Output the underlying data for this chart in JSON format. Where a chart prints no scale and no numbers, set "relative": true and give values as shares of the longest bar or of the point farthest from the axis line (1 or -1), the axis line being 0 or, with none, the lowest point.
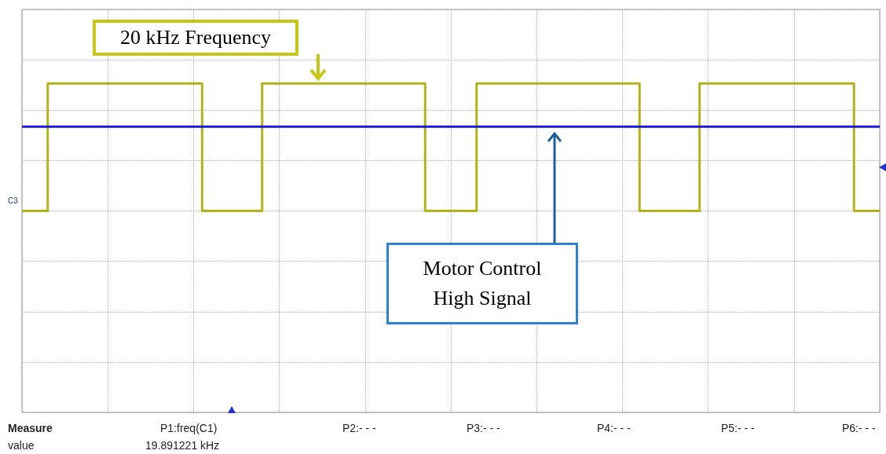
{
  "chart_data": {
    "type": "step",
    "relative": true,
    "grid": true,
    "categories": [
      null,
      null,
      null,
      null,
      null,
      null,
      null,
      null,
      null,
      null,
      null,
      null,
      null,
      null,
      null,
      null,
      null,
      null,
      null,
      null,
      null,
      null,
      null,
      null,
      null,
      null,
      null,
      null,
      null,
      null,
      null,
      null,
      null,
      null,
      null,
      null,
      null,
      null,
      null,
      null,
      null,
      null,
      null,
      null,
      null,
      null,
      null,
      null,
      null,
      null,
      null,
      null,
      null,
      null,
      null,
      null,
      null,
      null,
      null,
      null,
      null,
      null,
      null,
      null,
      null,
      null,
      null,
      null,
      null,
      null,
      null,
      null,
      null,
      null,
      null,
      null,
      null,
      null,
      null,
      null,
      null,
      null,
      null,
      null,
      null,
      null,
      null,
      null,
      null,
      null,
      null,
      null,
      null,
      null,
      null,
      null,
      null,
      null,
      null,
      null,
      null
    ],
    "series": [
      {
        "color": "#b3b319",
        "values": [
          0,
          0,
          0,
          1,
          1,
          1,
          1,
          1,
          1,
          1,
          1,
          1,
          1,
          1,
          1,
          1,
          1,
          1,
          1,
          1,
          1,
          0,
          0,
          0,
          0,
          0,
          0,
          0,
          1,
          1,
          1,
          1,
          1,
          1,
          1,
          1,
          1,
          1,
          1,
          1,
          1,
          1,
          1,
          1,
          1,
          1,
          1,
          0,
          0,
          0,
          0,
          0,
          0,
          1,
          1,
          1,
          1,
          1,
          1,
          1,
          1,
          1,
          1,
          1,
          1,
          1,
          1,
          1,
          1,
          1,
          1,
          1,
          0,
          0,
          0,
          0,
          0,
          0,
          0,
          1,
          1,
          1,
          1,
          1,
          1,
          1,
          1,
          1,
          1,
          1,
          1,
          1,
          1,
          1,
          1,
          1,
          1,
          0,
          0,
          0,
          0
        ]
      },
      {
        "color": "#1a1ad6",
        "values": [
          0.66,
          0.66,
          0.66,
          0.66,
          0.66,
          0.66,
          0.66,
          0.66,
          0.66,
          0.66,
          0.66,
          0.66,
          0.66,
          0.66,
          0.66,
          0.66,
          0.66,
          0.66,
          0.66,
          0.66,
          0.66,
          0.66,
          0.66,
          0.66,
          0.66,
          0.66,
          0.66,
          0.66,
          0.66,
          0.66,
          0.66,
          0.66,
          0.66,
          0.66,
          0.66,
          0.66,
          0.66,
          0.66,
          0.66,
          0.66,
          0.66,
          0.66,
          0.66,
          0.66,
          0.66,
          0.66,
          0.66,
          0.66,
          0.66,
          0.66,
          0.66,
          0.66,
          0.66,
          0.66,
          0.66,
          0.66,
          0.66,
          0.66,
          0.66,
          0.66,
          0.66,
          0.66,
          0.66,
          0.66,
          0.66,
          0.66,
          0.66,
          0.66,
          0.66,
          0.66,
          0.66,
          0.66,
          0.66,
          0.66,
          0.66,
          0.66,
          0.66,
          0.66,
          0.66,
          0.66,
          0.66,
          0.66,
          0.66,
          0.66,
          0.66,
          0.66,
          0.66,
          0.66,
          0.66,
          0.66,
          0.66,
          0.66,
          0.66,
          0.66,
          0.66,
          0.66,
          0.66,
          0.66,
          0.66,
          0.66,
          0.66
        ]
      }
    ],
    "annotations": [
      "20 kHz Frequency",
      "Motor Control High Signal",
      "C3",
      "Measure",
      "P1:freq(C1)",
      "P2:- - -",
      "P3:- - -",
      "P4:- - -",
      "P5:- - -",
      "P6:- - -",
      "value",
      "19.891221 kHz"
    ]
  }
}
